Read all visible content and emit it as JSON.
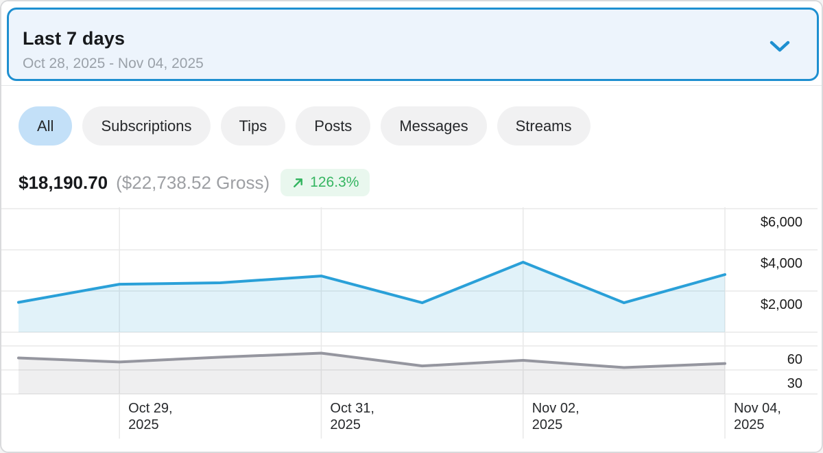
{
  "date_selector": {
    "label": "Last 7 days",
    "range": "Oct 28, 2025 - Nov 04, 2025"
  },
  "filters": [
    {
      "label": "All",
      "active": true
    },
    {
      "label": "Subscriptions",
      "active": false
    },
    {
      "label": "Tips",
      "active": false
    },
    {
      "label": "Posts",
      "active": false
    },
    {
      "label": "Messages",
      "active": false
    },
    {
      "label": "Streams",
      "active": false
    }
  ],
  "summary": {
    "net": "$18,190.70",
    "gross": "($22,738.52 Gross)",
    "change": "126.3%"
  },
  "icons": {
    "chevron_down": "⌄",
    "trend_up": "↗"
  },
  "chart_data": {
    "type": "area",
    "x": [
      "Oct 28, 2025",
      "Oct 29, 2025",
      "Oct 30, 2025",
      "Oct 31, 2025",
      "Nov 01, 2025",
      "Nov 02, 2025",
      "Nov 03, 2025",
      "Nov 04, 2025"
    ],
    "series": [
      {
        "name": "earnings_usd",
        "color": "#2aa0d8",
        "fill": "rgba(42,160,216,0.14)",
        "values": [
          1450,
          2330,
          2400,
          2730,
          1430,
          3400,
          1430,
          2800
        ],
        "ylim": [
          0,
          6000
        ],
        "y_ticks": [
          {
            "value": 2000,
            "label": "$2,000"
          },
          {
            "value": 4000,
            "label": "$4,000"
          },
          {
            "value": 6000,
            "label": "$6,000"
          }
        ]
      },
      {
        "name": "secondary_count",
        "color": "#95969f",
        "fill": "rgba(130,132,142,0.13)",
        "values": [
          45,
          40,
          46,
          51,
          35,
          42,
          33,
          38
        ],
        "ylim": [
          0,
          72
        ],
        "y_ticks": [
          {
            "value": 30,
            "label": "30"
          },
          {
            "value": 60,
            "label": "60"
          }
        ]
      }
    ],
    "x_ticks": [
      {
        "index": 1,
        "lines": [
          "Oct 29,",
          "2025"
        ]
      },
      {
        "index": 3,
        "lines": [
          "Oct 31,",
          "2025"
        ]
      },
      {
        "index": 5,
        "lines": [
          "Nov 02,",
          "2025"
        ]
      },
      {
        "index": 7,
        "lines": [
          "Nov 04,",
          "2025"
        ]
      }
    ],
    "grid": true,
    "legend": false,
    "axis_side": "right"
  },
  "colors": {
    "accent_blue": "#1e8fd0",
    "selector_bg": "#edf4fc",
    "pill_active_bg": "#c3e0f8",
    "pill_bg": "#f1f1f2",
    "badge_bg": "#e9f7ee",
    "badge_green": "#35b561",
    "grid": "#e9e9e9",
    "axis_text": "#1c1c1c"
  }
}
